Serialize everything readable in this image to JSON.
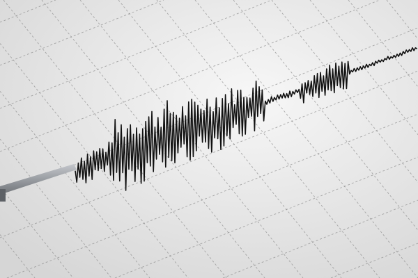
{
  "scene": {
    "subject": "seismograph-trace",
    "colors": {
      "paper_light": "#f7f7f7",
      "paper_dark": "#d9d9d9",
      "grid": "#8a8a8a",
      "trace": "#111111",
      "stylus": "#8c8f94"
    }
  }
}
